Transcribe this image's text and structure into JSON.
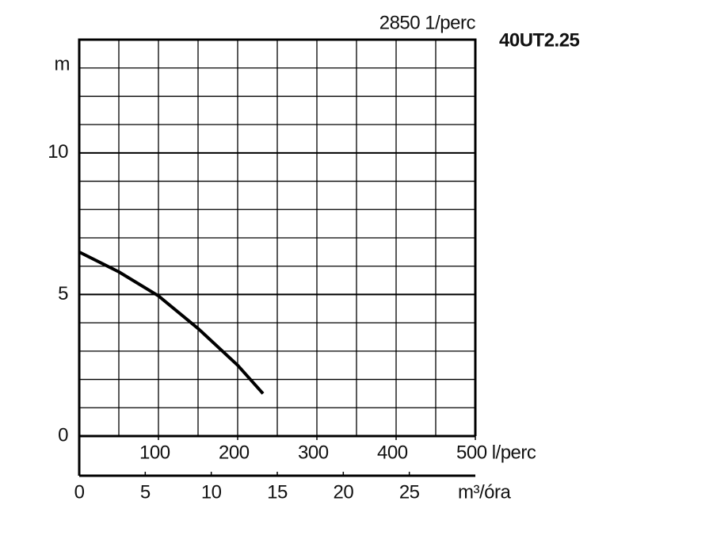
{
  "chart_data": {
    "type": "line",
    "title": "40UT2.25",
    "subtitle": "2850 1/perc",
    "y_label": "m",
    "x2_label": "m³/óra",
    "x": [
      0,
      50,
      100,
      150,
      200,
      232
    ],
    "series": [
      {
        "name": null,
        "color": "#000000",
        "values": [
          6.5,
          5.8,
          4.95,
          3.8,
          2.5,
          1.5
        ]
      }
    ],
    "xlim": [
      0,
      500
    ],
    "xticks": [
      100,
      200,
      300,
      400,
      {
        "value": 500,
        "label": "500 l/perc"
      }
    ],
    "x2lim": [
      0,
      30
    ],
    "x2ticks": [
      0,
      5,
      10,
      15,
      20,
      25
    ],
    "ylim": [
      0,
      14
    ],
    "yticks": [
      0,
      5,
      10
    ],
    "grid": true,
    "x_grid_step": 50,
    "y_grid_step": 1
  }
}
